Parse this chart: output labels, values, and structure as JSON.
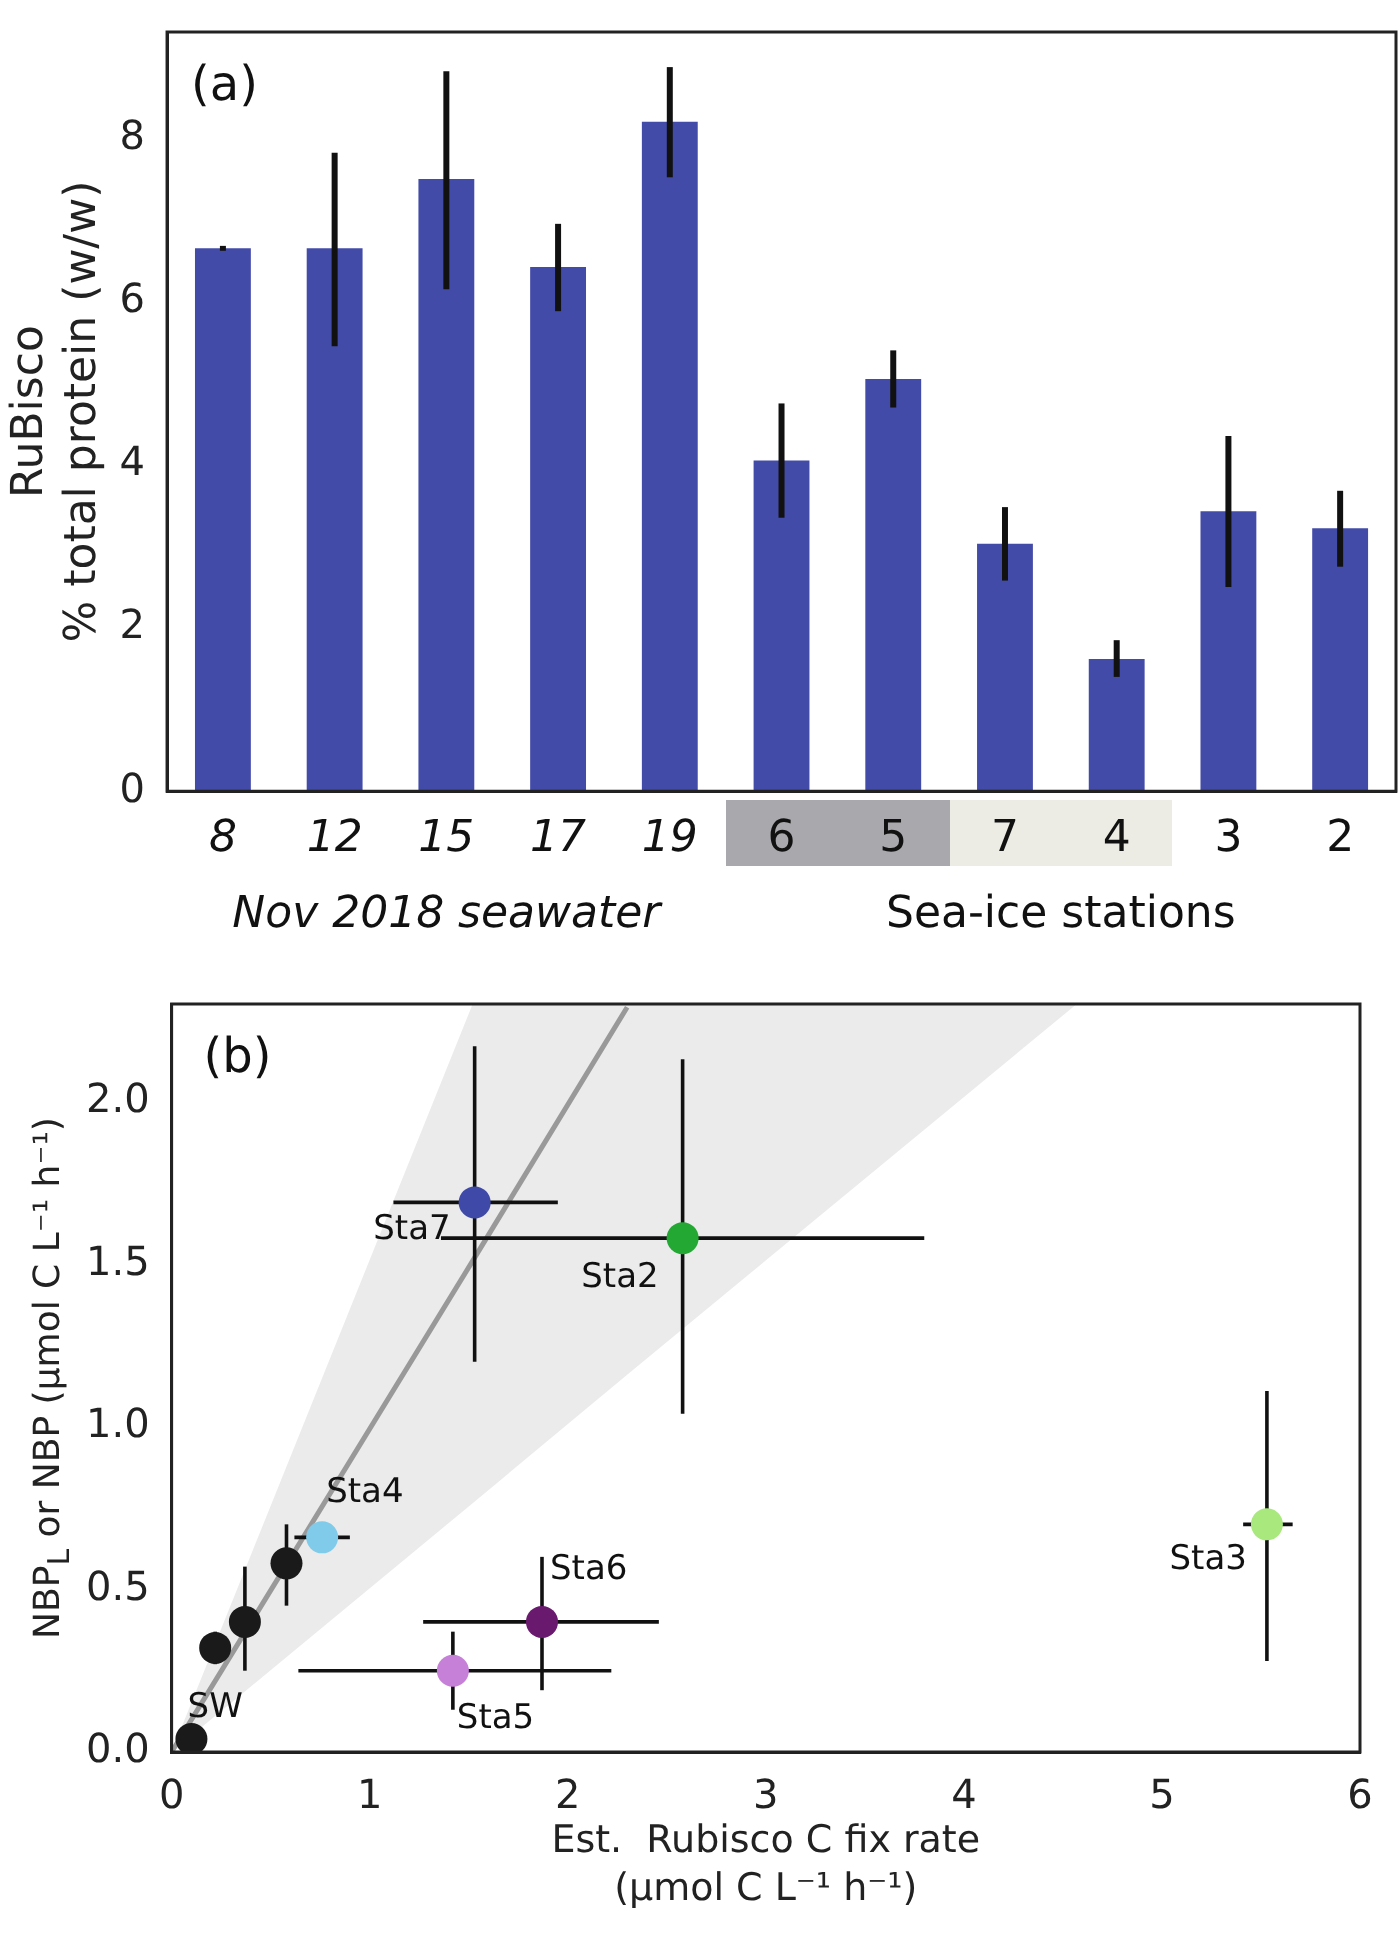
{
  "chart_data": [
    {
      "type": "bar",
      "annotations": [
        "(a)",
        "Nov 2018 seawater",
        "Sea-ice stations"
      ],
      "ylabel": "RuBisco\n% total protein (w/w)",
      "categories": [
        "8",
        "12",
        "15",
        "17",
        "19",
        "6",
        "5",
        "7",
        "4",
        "3",
        "2"
      ],
      "values": [
        6.65,
        6.65,
        7.5,
        6.42,
        8.2,
        4.05,
        5.05,
        3.03,
        1.62,
        3.43,
        3.22
      ],
      "errors": [
        [
          6.62,
          6.68
        ],
        [
          5.45,
          7.82
        ],
        [
          6.15,
          8.82
        ],
        [
          5.88,
          6.95
        ],
        [
          7.52,
          8.87
        ],
        [
          3.35,
          4.75
        ],
        [
          4.7,
          5.4
        ],
        [
          2.58,
          3.48
        ],
        [
          1.4,
          1.85
        ],
        [
          2.5,
          4.35
        ],
        [
          2.75,
          3.68
        ]
      ],
      "color": "#434ba8",
      "ylim": [
        0,
        9.3
      ],
      "yticks": [
        0,
        2,
        4,
        6,
        8
      ]
    },
    {
      "type": "scatter",
      "annotations": [
        "(b)",
        {
          "text": "SW",
          "x": 0.22,
          "y": 0.32
        },
        {
          "text": "Sta4",
          "x": 0.76,
          "y": 0.66
        },
        {
          "text": "Sta7",
          "x": 1.53,
          "y": 1.69
        },
        {
          "text": "Sta2",
          "x": 2.58,
          "y": 1.58
        },
        {
          "text": "Sta6",
          "x": 1.87,
          "y": 0.4
        },
        {
          "text": "Sta5",
          "x": 1.42,
          "y": 0.25
        },
        {
          "text": "Sta3",
          "x": 5.53,
          "y": 0.7
        }
      ],
      "xlabel": "Est.  Rubisco C fix rate (μmol C L⁻¹ h⁻¹)",
      "ylabel": "NBP$_{L}$ or NBP (μmol C L⁻¹ h⁻¹)",
      "xlim": [
        0,
        6
      ],
      "xticks": [
        0,
        1,
        2,
        3,
        4,
        5,
        6
      ],
      "ylim": [
        0,
        2.3
      ],
      "yticks": [
        {
          "value": 0,
          "label": "0.0"
        },
        {
          "value": 0.5,
          "label": "0.5"
        },
        {
          "value": 1,
          "label": "1.0"
        },
        {
          "value": 1.5,
          "label": "1.5"
        },
        {
          "value": 2,
          "label": "2.0"
        }
      ],
      "series": [
        {
          "type": "scatter",
          "marker": "circle",
          "x": [
            0.1,
            0.22,
            0.37,
            0.58,
            0.76,
            1.53,
            2.58,
            1.87,
            1.42,
            5.53
          ],
          "values": [
            0.04,
            0.32,
            0.4,
            0.58,
            0.66,
            1.69,
            1.58,
            0.4,
            0.25,
            0.7
          ],
          "colors": [
            "#1a1a1a",
            "#1a1a1a",
            "#1a1a1a",
            "#1a1a1a",
            "#80cbea",
            "#3f4aa8",
            "#22a833",
            "#6a1a6e",
            "#c680d8",
            "#a8e87c"
          ],
          "errors": [
            null,
            [
              0.27,
              0.37
            ],
            [
              0.25,
              0.57
            ],
            [
              0.45,
              0.7
            ],
            null,
            [
              1.2,
              2.17
            ],
            [
              1.04,
              2.13
            ],
            [
              0.19,
              0.6
            ],
            [
              0.13,
              0.37
            ],
            [
              0.28,
              1.11
            ]
          ],
          "xerrors": [
            null,
            [
              0.15,
              0.29
            ],
            null,
            null,
            [
              0.62,
              0.9
            ],
            [
              1.12,
              1.95
            ],
            [
              1.36,
              3.8
            ],
            [
              1.27,
              2.46
            ],
            [
              0.64,
              2.22
            ],
            [
              5.41,
              5.66
            ]
          ]
        },
        {
          "type": "line",
          "x": [
            0,
            1.52,
            2.3,
            4.57
          ],
          "values": [
            0,
            1.51,
            2.29,
            null
          ],
          "lower": [
            0,
            0.765,
            1.16,
            2.3
          ],
          "upper": [
            0,
            2.3,
            2.3,
            2.3
          ],
          "color": "#999999",
          "marker": "none"
        }
      ]
    }
  ]
}
